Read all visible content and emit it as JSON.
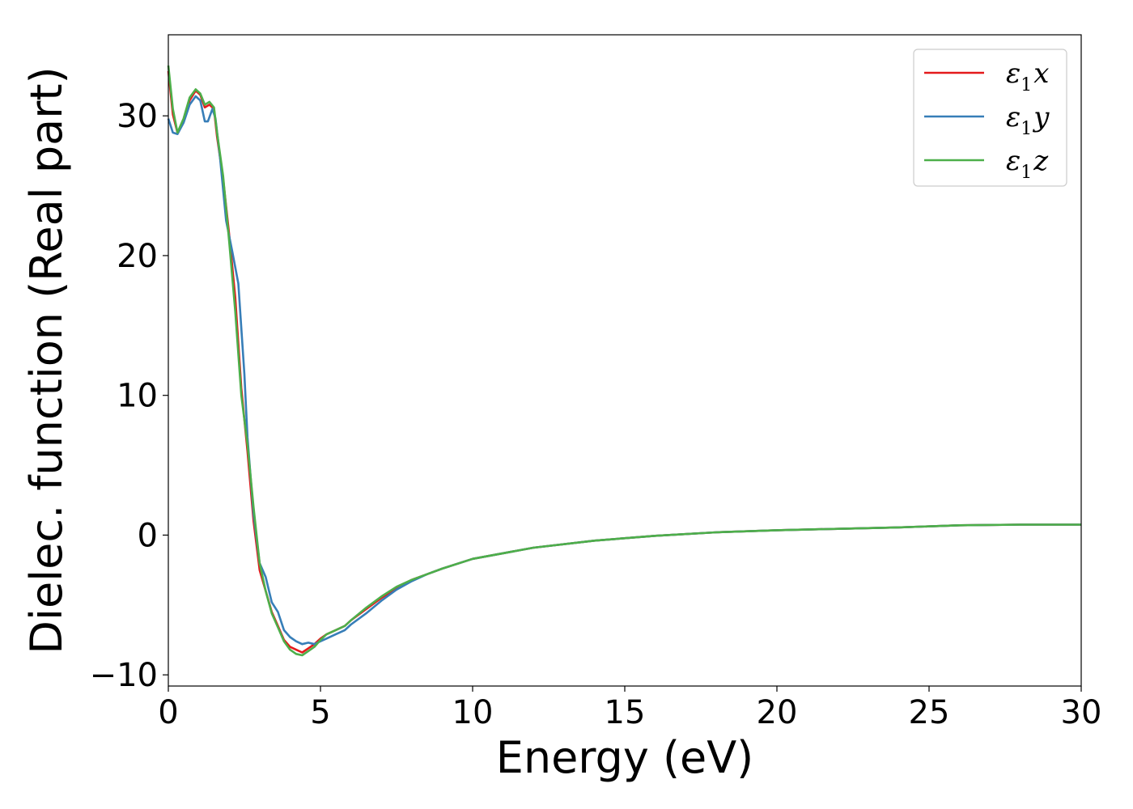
{
  "chart_data": {
    "type": "line",
    "title": "",
    "xlabel": "Energy (eV)",
    "ylabel": "Dielec. function (Real part)",
    "xlim": [
      0,
      30
    ],
    "ylim": [
      -10.8,
      35.8
    ],
    "xticks": [
      0,
      5,
      10,
      15,
      20,
      25,
      30
    ],
    "xtick_labels": [
      "0",
      "5",
      "10",
      "15",
      "20",
      "25",
      "30"
    ],
    "yticks": [
      -10,
      0,
      10,
      20,
      30
    ],
    "ytick_labels": [
      "−10",
      "0",
      "10",
      "20",
      "30"
    ],
    "grid": false,
    "legend_position": "top-right",
    "series": [
      {
        "name": "ε1x",
        "legend_symbol": "ε",
        "legend_sub": "1",
        "legend_var": "x",
        "color": "#e41a1c",
        "x": [
          0,
          0.15,
          0.3,
          0.5,
          0.7,
          0.9,
          1.05,
          1.2,
          1.35,
          1.5,
          1.6,
          1.8,
          2.0,
          2.2,
          2.4,
          2.6,
          2.8,
          3.0,
          3.2,
          3.4,
          3.6,
          3.8,
          4.0,
          4.2,
          4.4,
          4.6,
          4.8,
          5.0,
          5.2,
          5.5,
          5.8,
          6.0,
          6.5,
          7.0,
          7.5,
          8.0,
          8.5,
          9.0,
          10.0,
          12.0,
          14.0,
          16.0,
          18.0,
          20.0,
          22.0,
          24.0,
          26.0,
          28.0,
          30.0
        ],
        "values": [
          33.2,
          30.1,
          28.8,
          29.6,
          31.1,
          31.8,
          31.5,
          30.6,
          30.8,
          30.5,
          28.5,
          25.5,
          21.5,
          17.0,
          10.5,
          6.0,
          1.0,
          -2.5,
          -4.0,
          -5.5,
          -6.5,
          -7.5,
          -8.0,
          -8.2,
          -8.4,
          -8.1,
          -7.8,
          -7.4,
          -7.1,
          -6.8,
          -6.5,
          -6.1,
          -5.3,
          -4.5,
          -3.8,
          -3.2,
          -2.8,
          -2.4,
          -1.7,
          -0.9,
          -0.4,
          -0.05,
          0.2,
          0.35,
          0.45,
          0.55,
          0.7,
          0.75,
          0.75
        ]
      },
      {
        "name": "ε1y",
        "legend_symbol": "ε",
        "legend_sub": "1",
        "legend_var": "y",
        "color": "#377eb8",
        "x": [
          0,
          0.15,
          0.3,
          0.5,
          0.7,
          0.9,
          1.05,
          1.2,
          1.3,
          1.45,
          1.55,
          1.7,
          1.9,
          2.1,
          2.3,
          2.5,
          2.6,
          2.8,
          3.0,
          3.2,
          3.4,
          3.6,
          3.8,
          4.0,
          4.2,
          4.4,
          4.6,
          4.8,
          5.0,
          5.2,
          5.5,
          5.8,
          6.0,
          6.5,
          7.0,
          7.5,
          8.0,
          8.5,
          9.0,
          10.0,
          12.0,
          14.0,
          16.0,
          18.0,
          20.0,
          22.0,
          24.0,
          26.0,
          28.0,
          30.0
        ],
        "values": [
          29.8,
          28.8,
          28.7,
          29.5,
          30.8,
          31.4,
          31.1,
          29.6,
          29.6,
          30.5,
          29.8,
          27.0,
          22.5,
          20.3,
          18.0,
          11.5,
          7.0,
          1.5,
          -2.0,
          -3.0,
          -4.8,
          -5.5,
          -6.8,
          -7.3,
          -7.6,
          -7.8,
          -7.7,
          -7.8,
          -7.6,
          -7.4,
          -7.1,
          -6.8,
          -6.4,
          -5.6,
          -4.7,
          -3.9,
          -3.3,
          -2.8,
          -2.4,
          -1.7,
          -0.9,
          -0.4,
          -0.05,
          0.2,
          0.35,
          0.45,
          0.55,
          0.7,
          0.75,
          0.75
        ]
      },
      {
        "name": "ε1z",
        "legend_symbol": "ε",
        "legend_sub": "1",
        "legend_var": "z",
        "color": "#4daf4a",
        "x": [
          0,
          0.15,
          0.3,
          0.5,
          0.7,
          0.9,
          1.05,
          1.2,
          1.35,
          1.5,
          1.6,
          1.8,
          2.0,
          2.2,
          2.4,
          2.6,
          2.8,
          3.0,
          3.2,
          3.4,
          3.6,
          3.8,
          4.0,
          4.2,
          4.4,
          4.6,
          4.8,
          5.0,
          5.2,
          5.5,
          5.8,
          6.0,
          6.5,
          7.0,
          7.5,
          8.0,
          8.5,
          9.0,
          10.0,
          12.0,
          14.0,
          16.0,
          18.0,
          20.0,
          22.0,
          24.0,
          26.0,
          28.0,
          30.0
        ],
        "values": [
          33.6,
          30.5,
          28.8,
          29.8,
          31.3,
          31.9,
          31.6,
          30.8,
          31.0,
          30.6,
          28.8,
          25.7,
          21.0,
          16.0,
          10.0,
          6.5,
          2.0,
          -2.0,
          -4.0,
          -5.6,
          -6.6,
          -7.6,
          -8.2,
          -8.5,
          -8.6,
          -8.3,
          -8.0,
          -7.5,
          -7.1,
          -6.8,
          -6.5,
          -6.1,
          -5.2,
          -4.4,
          -3.7,
          -3.2,
          -2.8,
          -2.4,
          -1.7,
          -0.9,
          -0.4,
          -0.05,
          0.2,
          0.35,
          0.45,
          0.55,
          0.7,
          0.75,
          0.75
        ]
      }
    ]
  }
}
